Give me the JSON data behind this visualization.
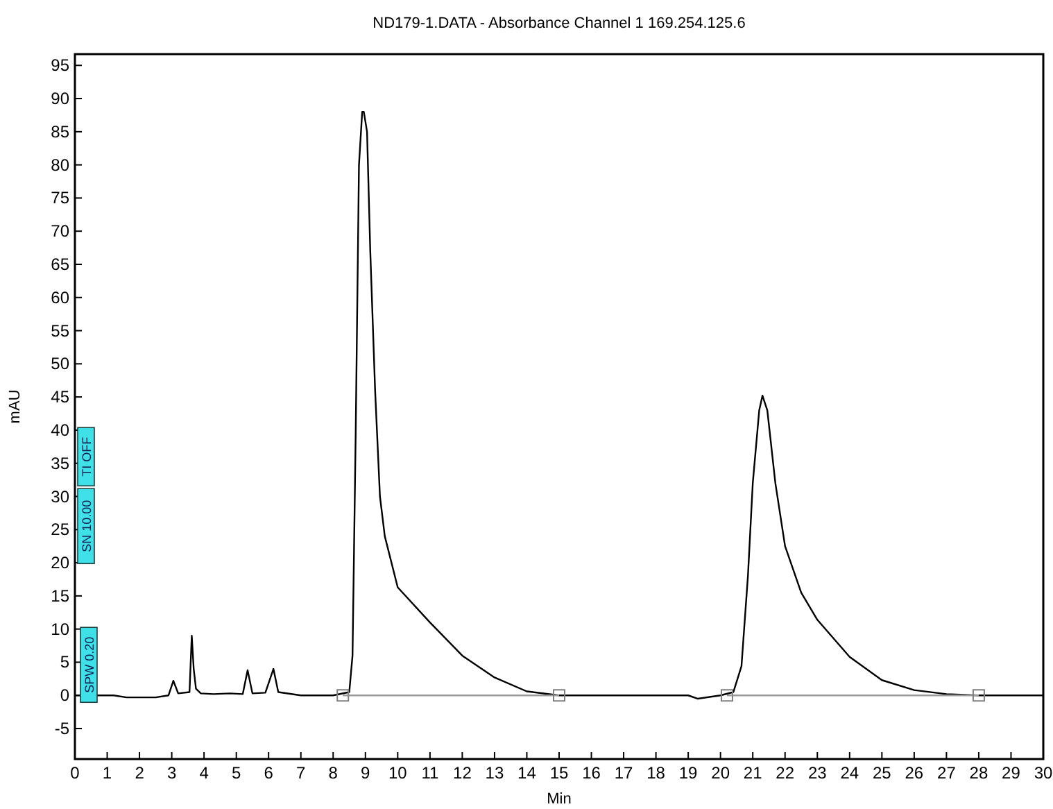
{
  "chart_data": {
    "type": "line",
    "title": "ND179-1.DATA - Absorbance Channel 1 169.254.125.6",
    "xlabel": "Min",
    "ylabel": "mAU",
    "xlim": [
      0,
      30
    ],
    "ylim": [
      -9.6,
      96.7
    ],
    "xticks": [
      0,
      1,
      2,
      3,
      4,
      5,
      6,
      7,
      8,
      9,
      10,
      11,
      12,
      13,
      14,
      15,
      16,
      17,
      18,
      19,
      20,
      21,
      22,
      23,
      24,
      25,
      26,
      27,
      28,
      29,
      30
    ],
    "yticks": [
      -5,
      0,
      5,
      10,
      15,
      20,
      25,
      30,
      35,
      40,
      45,
      50,
      55,
      60,
      65,
      70,
      75,
      80,
      85,
      90,
      95
    ],
    "grid": false,
    "marker": "none",
    "line_style": "solid",
    "series": [
      {
        "color": "#000000",
        "x": [
          0,
          1.2,
          1.6,
          2.0,
          2.5,
          2.9,
          3.05,
          3.2,
          3.55,
          3.62,
          3.68,
          3.75,
          3.9,
          4.3,
          4.8,
          5.2,
          5.35,
          5.5,
          5.9,
          6.15,
          6.3,
          7.0,
          8.0,
          8.5,
          8.6,
          8.7,
          8.8,
          8.9,
          8.95,
          9.05,
          9.15,
          9.3,
          9.45,
          9.6,
          10,
          11,
          12,
          13,
          14,
          15,
          18,
          19,
          19.3,
          20,
          20.4,
          20.65,
          20.85,
          21.0,
          21.2,
          21.3,
          21.45,
          21.7,
          22,
          22.5,
          23,
          24,
          25,
          26,
          27,
          28,
          30
        ],
        "values": [
          0,
          0,
          -0.3,
          -0.3,
          -0.3,
          0,
          2.2,
          0.3,
          0.5,
          9,
          4,
          1,
          0.3,
          0.2,
          0.3,
          0.2,
          3.8,
          0.3,
          0.4,
          4,
          0.5,
          0,
          0,
          0.5,
          6,
          40,
          80,
          88,
          88,
          85,
          67,
          46,
          30,
          24,
          16.3,
          11,
          6,
          2.7,
          0.6,
          0,
          0,
          0,
          -0.5,
          0,
          0.5,
          4.4,
          18,
          32,
          43,
          45.2,
          43,
          32,
          22.5,
          15.5,
          11.4,
          5.8,
          2.3,
          0.8,
          0.2,
          0,
          0
        ]
      },
      {
        "color": "#999999",
        "x": [
          8.3,
          15
        ],
        "values": [
          0,
          0
        ]
      },
      {
        "color": "#999999",
        "x": [
          20.2,
          28
        ],
        "values": [
          0,
          0
        ]
      },
      {
        "type": "scatter",
        "marker": "square",
        "color": "#808080",
        "x": [
          8.3,
          15,
          20.2,
          28
        ],
        "values": [
          0,
          0,
          0,
          0
        ]
      }
    ],
    "annotations": [
      "SPW 0.20",
      "SN 10.00",
      "TI OFF"
    ]
  }
}
